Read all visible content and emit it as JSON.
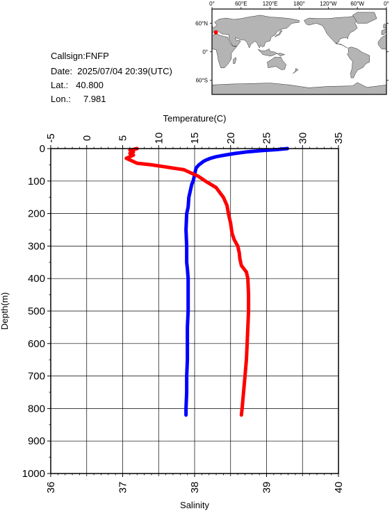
{
  "info": {
    "callsign": "Callsign:FNFP",
    "date": "Date:  2025/07/04 20:39(UTC)",
    "lat": "Lat.:   40.800",
    "lon": "Lon.:     7.981"
  },
  "map": {
    "top_tick_labels": [
      "0°",
      "60°E",
      "120°E",
      "180°",
      "120°W",
      "60°W",
      "0°"
    ],
    "right_tick_labels": [
      "60°N",
      "0°",
      "60°S"
    ],
    "marker_lat": 40.8,
    "marker_lon": 7.981,
    "marker_color": "#ff0000",
    "land_color": "#b4b4b4",
    "ocean_color": "#ffffff"
  },
  "chart_data": {
    "type": "line",
    "top_axis_label": "Temperature(C)",
    "bottom_axis_label": "Salinity",
    "left_axis_label": "Depth(m)",
    "temperature_ticks": [
      "-5",
      "0",
      "5",
      "10",
      "15",
      "20",
      "25",
      "30",
      "35"
    ],
    "salinity_ticks": [
      "36",
      "37",
      "38",
      "39",
      "40"
    ],
    "depth_ticks": [
      "0",
      "100",
      "200",
      "300",
      "400",
      "500",
      "600",
      "700",
      "800",
      "900",
      "1000"
    ],
    "temperature_range": [
      -5,
      35
    ],
    "salinity_range": [
      36,
      40
    ],
    "depth_range": [
      0,
      1000
    ],
    "grid": true,
    "series": [
      {
        "axis": "temperature",
        "color": "#0000ff",
        "points": [
          [
            27.9,
            0
          ],
          [
            26.5,
            3
          ],
          [
            24.5,
            6
          ],
          [
            22.3,
            10
          ],
          [
            20.6,
            15
          ],
          [
            19.2,
            20
          ],
          [
            18.0,
            25
          ],
          [
            17.2,
            30
          ],
          [
            16.6,
            35
          ],
          [
            16.2,
            40
          ],
          [
            15.9,
            45
          ],
          [
            15.6,
            50
          ],
          [
            15.4,
            55
          ],
          [
            15.2,
            60
          ],
          [
            15.1,
            70
          ],
          [
            15.0,
            80
          ],
          [
            14.9,
            90
          ],
          [
            14.8,
            100
          ],
          [
            14.6,
            110
          ],
          [
            14.4,
            130
          ],
          [
            14.2,
            150
          ],
          [
            14.1,
            180
          ],
          [
            13.9,
            200
          ],
          [
            13.8,
            250
          ],
          [
            13.9,
            300
          ],
          [
            13.9,
            350
          ],
          [
            14.0,
            370
          ],
          [
            14.1,
            400
          ],
          [
            14.1,
            450
          ],
          [
            14.1,
            500
          ],
          [
            14.0,
            550
          ],
          [
            14.0,
            600
          ],
          [
            14.0,
            650
          ],
          [
            13.9,
            700
          ],
          [
            13.9,
            750
          ],
          [
            13.8,
            800
          ],
          [
            13.8,
            820
          ]
        ]
      },
      {
        "axis": "salinity",
        "color": "#ff0000",
        "points": [
          [
            37.2,
            0
          ],
          [
            37.1,
            5
          ],
          [
            37.15,
            10
          ],
          [
            37.1,
            15
          ],
          [
            37.15,
            20
          ],
          [
            37.1,
            25
          ],
          [
            37.05,
            30
          ],
          [
            37.1,
            35
          ],
          [
            37.2,
            45
          ],
          [
            37.4,
            50
          ],
          [
            37.55,
            55
          ],
          [
            37.7,
            60
          ],
          [
            37.85,
            65
          ],
          [
            37.95,
            75
          ],
          [
            38.05,
            85
          ],
          [
            38.15,
            100
          ],
          [
            38.3,
            120
          ],
          [
            38.4,
            150
          ],
          [
            38.45,
            175
          ],
          [
            38.47,
            200
          ],
          [
            38.5,
            230
          ],
          [
            38.52,
            260
          ],
          [
            38.55,
            280
          ],
          [
            38.6,
            300
          ],
          [
            38.62,
            320
          ],
          [
            38.63,
            340
          ],
          [
            38.65,
            360
          ],
          [
            38.72,
            380
          ],
          [
            38.74,
            400
          ],
          [
            38.75,
            450
          ],
          [
            38.75,
            500
          ],
          [
            38.74,
            550
          ],
          [
            38.73,
            600
          ],
          [
            38.72,
            650
          ],
          [
            38.7,
            700
          ],
          [
            38.68,
            750
          ],
          [
            38.66,
            800
          ],
          [
            38.65,
            820
          ]
        ]
      }
    ]
  }
}
